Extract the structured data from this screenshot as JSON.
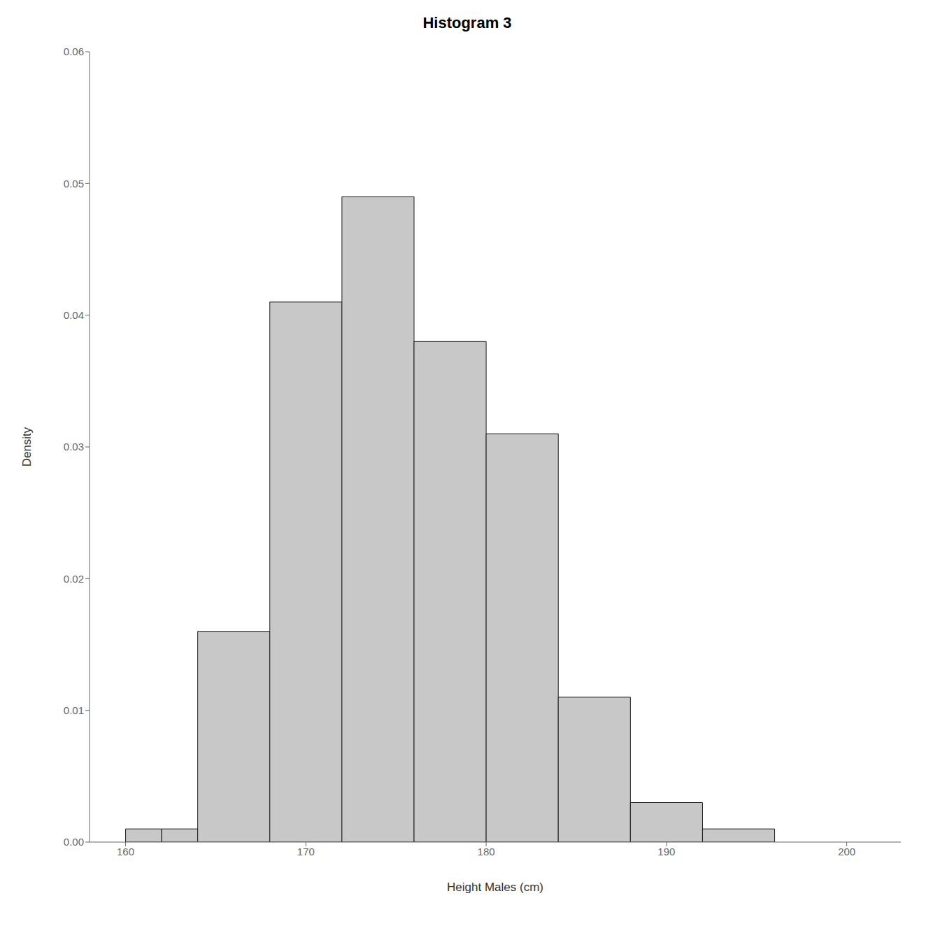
{
  "chart_data": {
    "type": "histogram",
    "title": "Histogram 3",
    "xlabel": "Height Males (cm)",
    "ylabel": "Density",
    "bins": [
      160,
      162,
      164,
      168,
      172,
      176,
      180,
      184,
      188,
      192,
      196,
      200
    ],
    "values": [
      0.001,
      0.001,
      0.016,
      0.041,
      0.049,
      0.038,
      0.031,
      0.011,
      0.003,
      0.001,
      0.0
    ],
    "color": "#c8c8c8",
    "xlim": [
      158,
      203
    ],
    "ylim": [
      0,
      0.06
    ],
    "xticks": [
      160,
      170,
      180,
      190,
      200
    ],
    "yticks": [
      {
        "value": 0,
        "label": "0.00"
      },
      0.01,
      0.02,
      0.03,
      0.04,
      0.05,
      0.06
    ],
    "grid": false
  }
}
